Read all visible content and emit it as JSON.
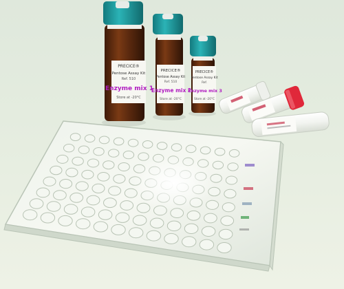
{
  "scene": {
    "description_colors": {
      "background": "#e4ecdf",
      "cap_teal": "#1f9a9e",
      "glass_amber": "#5a2a10",
      "label_white": "#f7f7f2",
      "label_purple": "#b01cc0",
      "cap_red": "#e0283a"
    }
  },
  "vials": {
    "large": {
      "brand": "PRECICE®",
      "line2": "Pentose Assay Kit",
      "line3": "Ref. 510",
      "product": "Enzyme mix 1",
      "line5": "Store at -20°C"
    },
    "medium": {
      "brand": "PRECICE®",
      "line2": "Pentose Assay Kit",
      "line3": "Ref. 510",
      "product": "Enzyme mix 2",
      "line5": "Store at -20°C"
    },
    "small": {
      "brand": "PRECICE®",
      "line2": "Pentose Assay Kit",
      "line3": "Ref.",
      "product": "Enzyme mix 3",
      "line5": "Store at -20°C"
    }
  },
  "plate": {
    "rows": 8,
    "columns": 12
  }
}
